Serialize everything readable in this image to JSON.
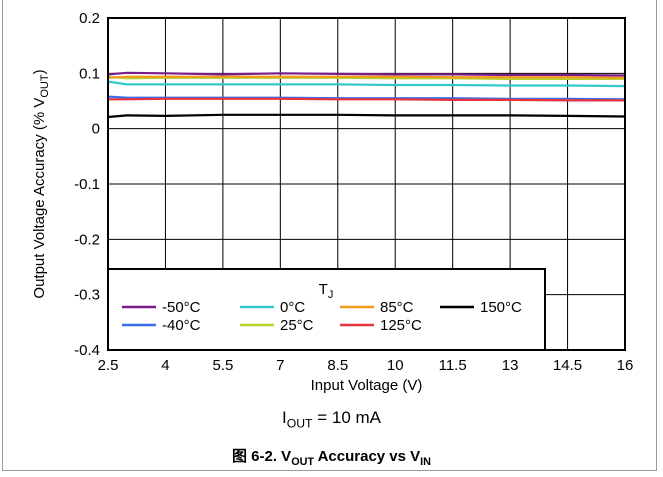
{
  "chart_data": {
    "type": "line",
    "xlabel": "Input Voltage (V)",
    "ylabel_main": "Output Voltage Accuracy (% V",
    "ylabel_sub": "OUT",
    "ylabel_end": ")",
    "xlim": [
      2.5,
      16
    ],
    "ylim": [
      -0.4,
      0.2
    ],
    "xticks": [
      2.5,
      4,
      5.5,
      7,
      8.5,
      10,
      11.5,
      13,
      14.5,
      16
    ],
    "xtick_labels": [
      "2.5",
      "4",
      "5.5",
      "7",
      "8.5",
      "10",
      "11.5",
      "13",
      "14.5",
      "16"
    ],
    "yticks": [
      0.2,
      0.1,
      0,
      -0.1,
      -0.2,
      -0.3,
      -0.4
    ],
    "ytick_labels": [
      "0.2",
      "0.1",
      "0",
      "-0.1",
      "-0.2",
      "-0.3",
      "-0.4"
    ],
    "grid": true,
    "legend_title_main": "T",
    "legend_title_sub": "J",
    "legend_placement": "bottom-left",
    "x": [
      2.5,
      3,
      4,
      5.5,
      7,
      8.5,
      10,
      11.5,
      13,
      14.5,
      16
    ],
    "series": [
      {
        "name": "-50°C",
        "color": "#7a1f8a",
        "values": [
          0.098,
          0.101,
          0.1,
          0.098,
          0.1,
          0.099,
          0.098,
          0.098,
          0.097,
          0.097,
          0.096
        ]
      },
      {
        "name": "-40°C",
        "color": "#3a6ee8",
        "values": [
          0.058,
          0.056,
          0.056,
          0.056,
          0.056,
          0.055,
          0.055,
          0.055,
          0.054,
          0.054,
          0.053
        ]
      },
      {
        "name": "0°C",
        "color": "#33c9c9",
        "values": [
          0.085,
          0.08,
          0.08,
          0.08,
          0.08,
          0.08,
          0.079,
          0.079,
          0.078,
          0.078,
          0.077
        ]
      },
      {
        "name": "25°C",
        "color": "#b5d12e",
        "values": [
          0.094,
          0.091,
          0.092,
          0.092,
          0.092,
          0.092,
          0.091,
          0.091,
          0.09,
          0.09,
          0.09
        ]
      },
      {
        "name": "85°C",
        "color": "#f29a1c",
        "values": [
          0.092,
          0.094,
          0.094,
          0.094,
          0.094,
          0.094,
          0.094,
          0.093,
          0.093,
          0.093,
          0.092
        ]
      },
      {
        "name": "125°C",
        "color": "#e8323c",
        "values": [
          0.053,
          0.053,
          0.054,
          0.054,
          0.054,
          0.053,
          0.053,
          0.052,
          0.052,
          0.051,
          0.051
        ]
      },
      {
        "name": "150°C",
        "color": "#000000",
        "values": [
          0.021,
          0.024,
          0.023,
          0.025,
          0.025,
          0.025,
          0.024,
          0.024,
          0.024,
          0.023,
          0.022
        ]
      }
    ]
  },
  "condition": {
    "main": "I",
    "sub": "OUT",
    "rest": " = 10 mA"
  },
  "caption": {
    "prefix": "图 6-2. V",
    "sub1": "OUT",
    "mid": " Accuracy vs V",
    "sub2": "IN"
  }
}
